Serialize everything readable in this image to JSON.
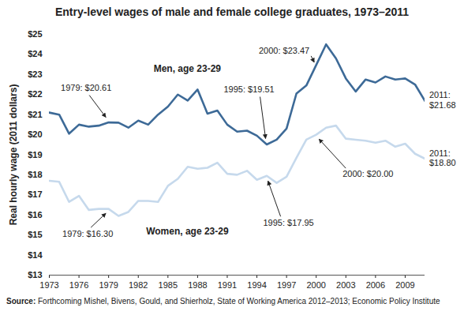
{
  "chart_data": {
    "type": "line",
    "title": "Entry-level wages of male and female college graduates, 1973–2011",
    "y_label": "Real hourly wage (2011 dollars)",
    "source": "Source: Forthcoming Mishel, Bivens, Gould, and Shierholz, State of Working America 2012–2013; Economic Policy Institute",
    "x": [
      1973,
      1974,
      1975,
      1976,
      1977,
      1978,
      1979,
      1980,
      1981,
      1982,
      1983,
      1984,
      1985,
      1986,
      1987,
      1988,
      1989,
      1990,
      1991,
      1992,
      1993,
      1994,
      1995,
      1996,
      1997,
      1998,
      1999,
      2000,
      2001,
      2002,
      2003,
      2004,
      2005,
      2006,
      2007,
      2008,
      2009,
      2010,
      2011
    ],
    "series": [
      {
        "name": "Men, age 23-29",
        "color": "#3d6a97",
        "values": [
          21.1,
          21.0,
          20.05,
          20.5,
          20.4,
          20.45,
          20.61,
          20.6,
          20.35,
          20.7,
          20.5,
          21.0,
          21.4,
          22.0,
          21.7,
          22.25,
          21.05,
          21.2,
          20.5,
          20.15,
          20.2,
          19.95,
          19.51,
          19.75,
          20.3,
          22.05,
          22.45,
          23.47,
          24.5,
          23.8,
          22.8,
          22.15,
          22.75,
          22.6,
          22.9,
          22.75,
          22.8,
          22.5,
          21.68
        ]
      },
      {
        "name": "Women, age 23-29",
        "color": "#c6d9ec",
        "values": [
          17.7,
          17.65,
          16.65,
          16.95,
          16.25,
          16.3,
          16.3,
          15.95,
          16.15,
          16.7,
          16.7,
          16.65,
          17.45,
          17.8,
          18.4,
          18.3,
          18.35,
          18.6,
          18.05,
          18.0,
          18.2,
          17.75,
          17.95,
          17.6,
          17.9,
          18.85,
          19.75,
          20.0,
          20.35,
          20.45,
          19.8,
          19.75,
          19.7,
          19.6,
          19.7,
          19.4,
          19.55,
          19.05,
          18.8
        ]
      }
    ],
    "xlim": [
      1973,
      2011
    ],
    "xticks": [
      1973,
      1976,
      1979,
      1982,
      1985,
      1988,
      1991,
      1994,
      1997,
      2000,
      2003,
      2006,
      2009
    ],
    "ylim": [
      13,
      25
    ],
    "yticks": [
      {
        "value": 13,
        "label": "$13"
      },
      {
        "value": 14,
        "label": "$14"
      },
      {
        "value": 15,
        "label": "$15"
      },
      {
        "value": 16,
        "label": "$16"
      },
      {
        "value": 17,
        "label": "$17"
      },
      {
        "value": 18,
        "label": "$18"
      },
      {
        "value": 19,
        "label": "$19"
      },
      {
        "value": 20,
        "label": "$20"
      },
      {
        "value": 21,
        "label": "$21"
      },
      {
        "value": 22,
        "label": "$22"
      },
      {
        "value": 23,
        "label": "$23"
      },
      {
        "value": 24,
        "label": "$24"
      },
      {
        "value": 25,
        "label": "$25"
      }
    ],
    "grid": false,
    "annotations": [
      {
        "text": "1979: $20.61",
        "x": 1979,
        "y": 20.61
      },
      {
        "text": "1979: $16.30",
        "x": 1979,
        "y": 16.3
      },
      {
        "text": "1995: $19.51",
        "x": 1995,
        "y": 19.51
      },
      {
        "text": "1995: $17.95",
        "x": 1995,
        "y": 17.95
      },
      {
        "text": "2000: $23.47",
        "x": 2000,
        "y": 23.47
      },
      {
        "text": "2000: $20.00",
        "x": 2000,
        "y": 20.0
      },
      {
        "text": "2011: $21.68",
        "x": 2011,
        "y": 21.68
      },
      {
        "text": "2011: $18.80",
        "x": 2011,
        "y": 18.8
      }
    ]
  }
}
